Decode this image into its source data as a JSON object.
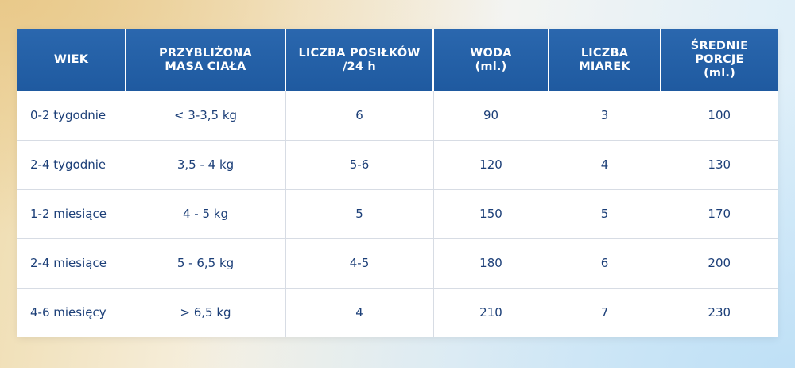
{
  "table": {
    "headers": [
      "WIEK",
      "PRZYBLIŻONA\nMASA CIAŁA",
      "LICZBA POSIŁKÓW\n/24 h",
      "WODA\n(ml.)",
      "LICZBA\nMIAREK",
      "ŚREDNIE PORCJE\n(ml.)"
    ],
    "rows": [
      [
        "0-2 tygodnie",
        "< 3-3,5 kg",
        "6",
        "90",
        "3",
        "100"
      ],
      [
        "2-4 tygodnie",
        "3,5 - 4 kg",
        "5-6",
        "120",
        "4",
        "130"
      ],
      [
        "1-2 miesiące",
        "4 - 5 kg",
        "5",
        "150",
        "5",
        "170"
      ],
      [
        "2-4 miesiące",
        "5 - 6,5 kg",
        "4-5",
        "180",
        "6",
        "200"
      ],
      [
        "4-6 miesięcy",
        "> 6,5 kg",
        "4",
        "210",
        "7",
        "230"
      ]
    ]
  },
  "colors": {
    "header_bg": "#2460a8",
    "cell_text": "#1c3f78",
    "grid": "#d7dce4"
  }
}
